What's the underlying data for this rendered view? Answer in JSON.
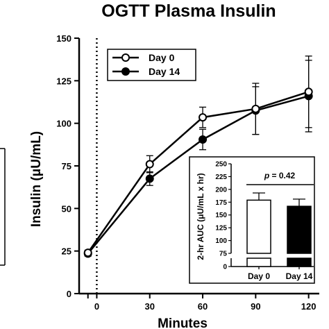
{
  "chart_data": [
    {
      "type": "line",
      "title": "OGTT Plasma Insulin",
      "xlabel": "Minutes",
      "ylabel": "Insulin (μU/mL)",
      "x_ticks": [
        "0",
        "30",
        "60",
        "90",
        "120"
      ],
      "y_ticks": [
        "0",
        "25",
        "50",
        "75",
        "100",
        "125",
        "150"
      ],
      "xlim": [
        -10,
        128
      ],
      "ylim": [
        0,
        150
      ],
      "reference_line": {
        "x": 0,
        "style": "dotted"
      },
      "legend_position": "top-left",
      "series": [
        {
          "name": "Day 0",
          "marker": "open-circle",
          "x": [
            -5,
            30,
            60,
            90,
            120
          ],
          "y": [
            24,
            76,
            103.5,
            108.5,
            118.5
          ],
          "error": [
            1.5,
            5,
            6,
            15,
            21
          ]
        },
        {
          "name": "Day 14",
          "marker": "filled-circle",
          "x": [
            -5,
            30,
            60,
            90,
            120
          ],
          "y": [
            23.5,
            67.5,
            90.5,
            107.5,
            116
          ],
          "error": [
            1.5,
            4,
            6,
            14,
            21
          ]
        }
      ]
    },
    {
      "type": "bar",
      "ylabel": "2-hr AUC (μU/mL x hr)",
      "categories": [
        "Day 0",
        "Day 14"
      ],
      "values": [
        179,
        167
      ],
      "error": [
        14,
        14
      ],
      "bar_fill": [
        "#ffffff",
        "#000000"
      ],
      "y_ticks": [
        "0",
        "75",
        "100",
        "125",
        "150",
        "175",
        "200",
        "225",
        "250"
      ],
      "ylim": [
        75,
        250
      ],
      "axis_break": true,
      "annotation": {
        "p_label": "p",
        "p_value": " = 0.42"
      }
    }
  ]
}
